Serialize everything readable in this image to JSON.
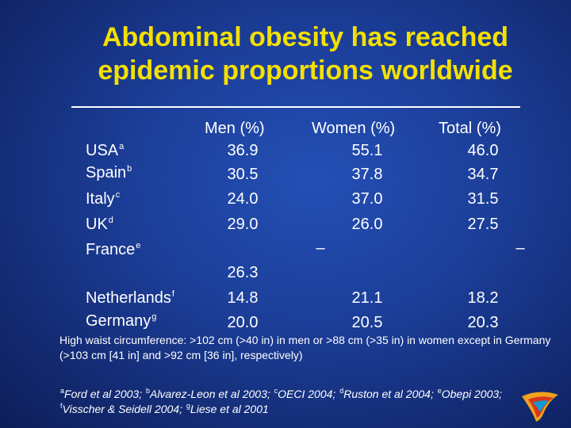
{
  "title": {
    "line1": "Abdominal obesity has reached",
    "line2": "epidemic proportions worldwide"
  },
  "table": {
    "headers": {
      "men": "Men (%)",
      "women": "Women (%)",
      "total": "Total (%)"
    },
    "rows": [
      {
        "country": "USA",
        "sup": "a",
        "men": "36.9",
        "women": "55.1",
        "total": "46.0"
      },
      {
        "country": "Spain",
        "sup": "b",
        "men": "30.5",
        "women": "37.8",
        "total": "34.7"
      },
      {
        "country": "Italy",
        "sup": "c",
        "men": "24.0",
        "women": "37.0",
        "total": "31.5"
      },
      {
        "country": "UK",
        "sup": "d",
        "men": "29.0",
        "women": "26.0",
        "total": "27.5"
      },
      {
        "country": "France",
        "sup": "e",
        "men": "26.3",
        "women": "–",
        "total": "–"
      },
      {
        "country": "Netherlands",
        "sup": "f",
        "men": "14.8",
        "women": "21.1",
        "total": "18.2"
      },
      {
        "country": "Germany",
        "sup": "g",
        "men": "20.0",
        "women": "20.5",
        "total": "20.3"
      }
    ]
  },
  "footnote": {
    "text": "High waist circumference: >102 cm (>40 in) in men or >88 cm (>35 in) in women except in Germany (>103 cm [41 in] and >92 cm [36 in], respectively)"
  },
  "references": {
    "a": "a",
    "a_text": "Ford et al 2003; ",
    "b": "b",
    "b_text": "Alvarez-Leon et al 2003; ",
    "c": "c",
    "c_text": "OECI 2004; ",
    "d": "d",
    "d_text": "Ruston et al 2004; ",
    "e": "e",
    "e_text": "Obepi 2003; ",
    "f": "f",
    "f_text": "Visscher  & Seidell 2004; ",
    "g": "g",
    "g_text": "Liese et al 2001"
  },
  "colors": {
    "title": "#f4e000",
    "background": "#1c3f9a",
    "text": "#ffffff"
  },
  "icons": {
    "logo": "corporate-logo-icon"
  }
}
